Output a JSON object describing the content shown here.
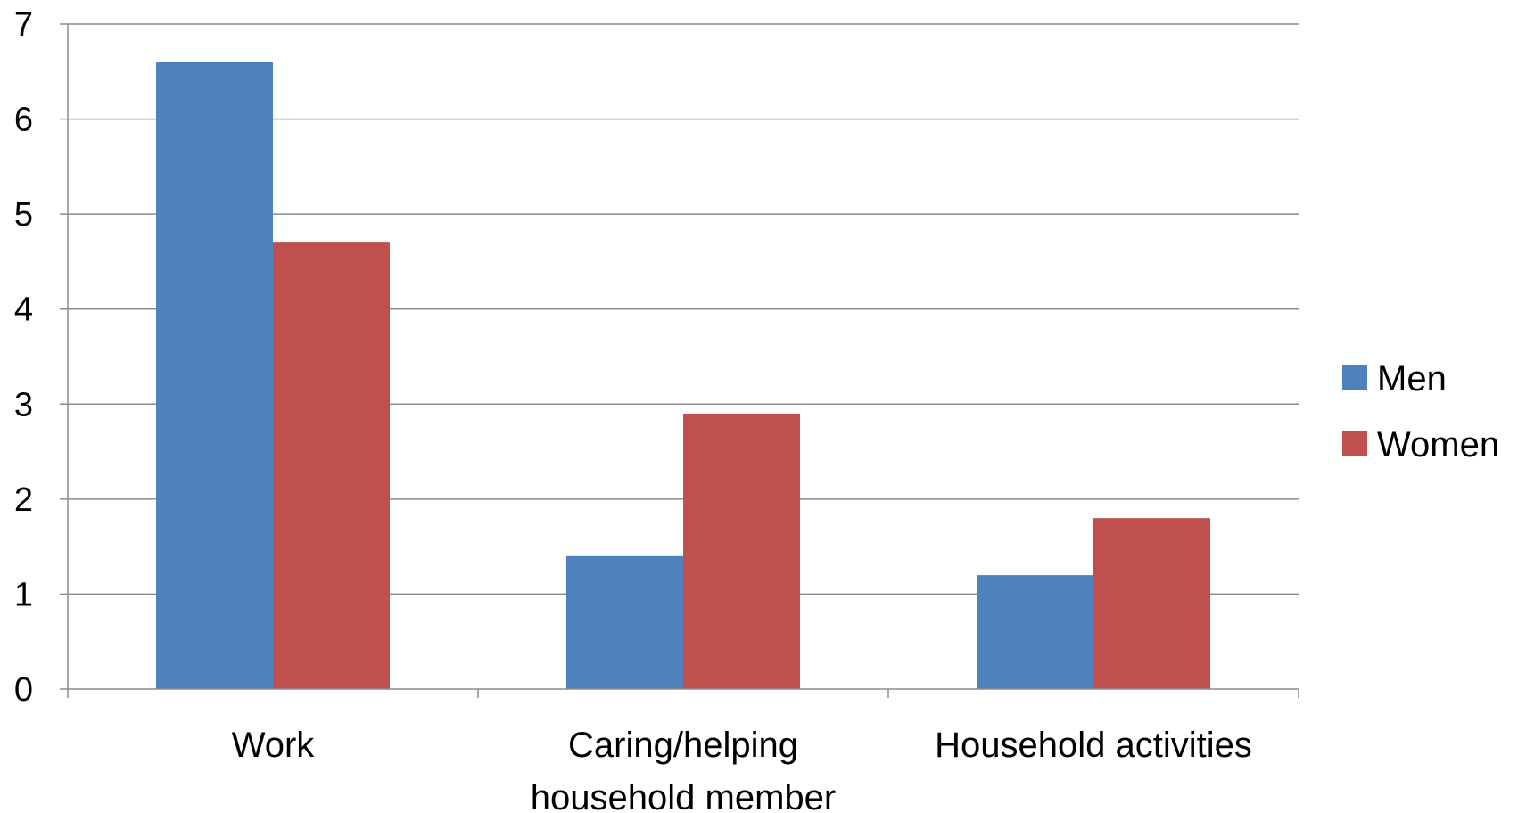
{
  "chart_data": {
    "type": "bar",
    "categories": [
      "Work",
      "Caring/helping household member",
      "Household activities"
    ],
    "category_label_lines": [
      [
        "Work"
      ],
      [
        "Caring/helping",
        "household member"
      ],
      [
        "Household activities"
      ]
    ],
    "series": [
      {
        "name": "Men",
        "values": [
          6.6,
          1.4,
          1.2
        ],
        "color": "#4F81BD"
      },
      {
        "name": "Women",
        "values": [
          4.7,
          2.9,
          1.8
        ],
        "color": "#C0504D"
      }
    ],
    "ylim": [
      0,
      7
    ],
    "yticks": [
      0,
      1,
      2,
      3,
      4,
      5,
      6,
      7
    ],
    "grid": true,
    "legend_position": "right",
    "gridline_color": "#8C8C8C",
    "axis_color": "#8C8C8C"
  }
}
